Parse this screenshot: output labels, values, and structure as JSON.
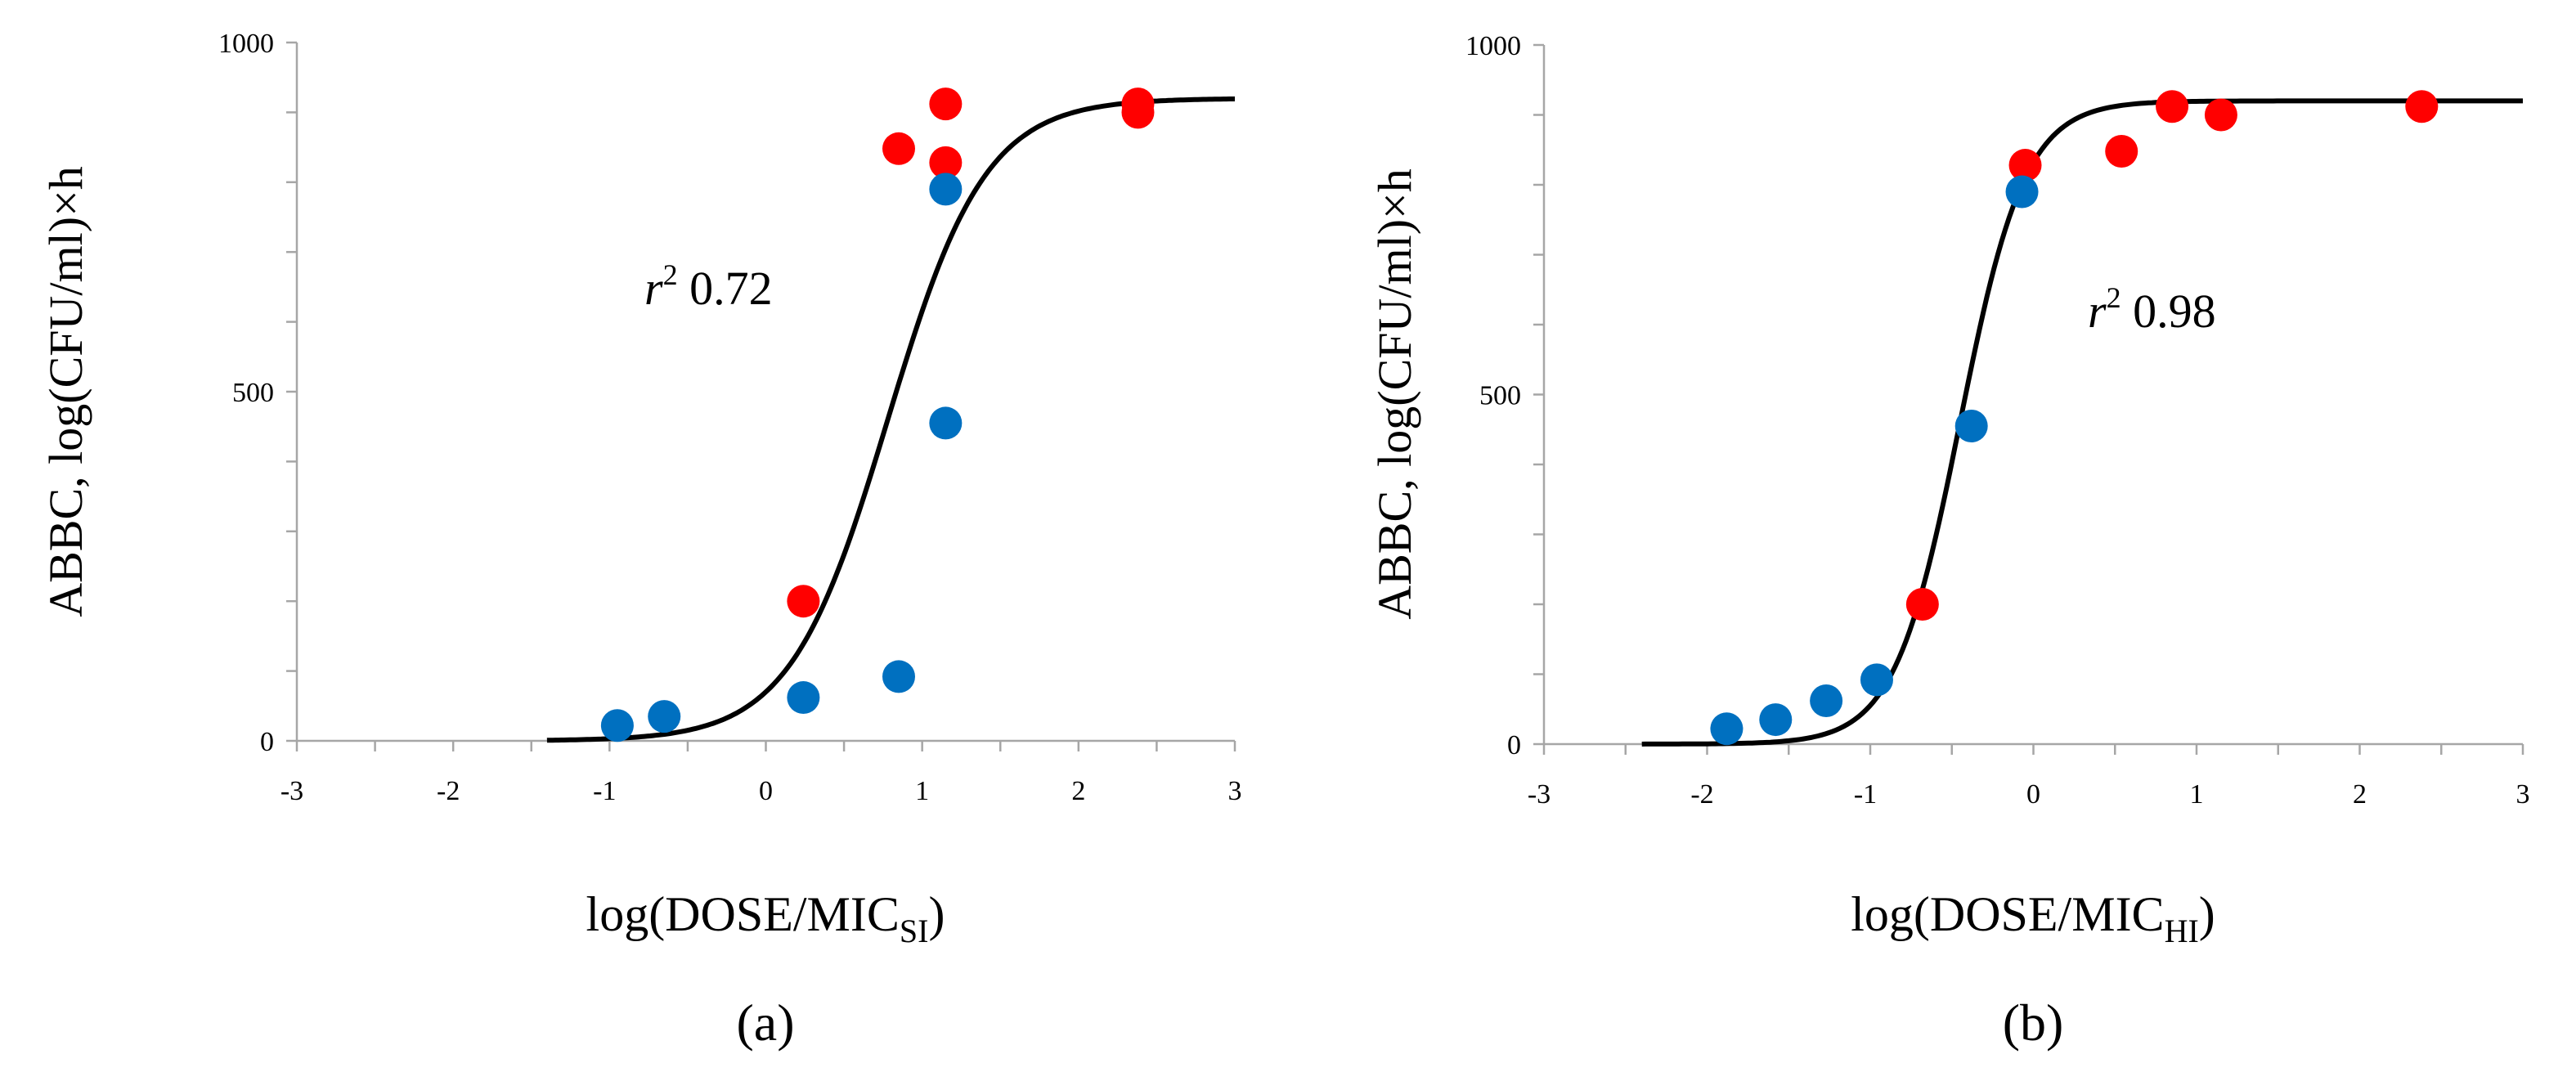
{
  "chart_data": [
    {
      "type": "scatter",
      "panel_label": "(a)",
      "xlabel_main": "log(DOSE/MIC",
      "xlabel_sub": "SI",
      "xlabel_close": ")",
      "ylabel": "ABBC, log(CFU/ml)×h",
      "xlim": [
        -3,
        3
      ],
      "ylim": [
        0,
        1000
      ],
      "x_ticks": [
        "-3",
        "-2",
        "-1",
        "0",
        "1",
        "2",
        "3"
      ],
      "y_ticks": [
        "0",
        "500",
        "1000"
      ],
      "annotation": {
        "symbol": "r",
        "sup": "2",
        "value": " 0.72"
      },
      "colors": {
        "series_red": "#ff0000",
        "series_blue": "#0070c0",
        "curve": "#000000",
        "axis": "#a6a6a6"
      },
      "series": [
        {
          "name": "red",
          "color": "#ff0000",
          "x": [
            0.24,
            0.85,
            1.15,
            1.15,
            2.38,
            2.38
          ],
          "y": [
            200,
            848,
            912,
            828,
            900,
            912
          ]
        },
        {
          "name": "blue",
          "color": "#0070c0",
          "x": [
            -0.95,
            -0.65,
            0.24,
            0.85,
            1.15,
            1.15
          ],
          "y": [
            22,
            35,
            62,
            92,
            455,
            790
          ]
        }
      ],
      "fit_curve": {
        "x0": 0.78,
        "slope": 3.2,
        "top": 920,
        "x_start": -1.4,
        "x_end": 3.0
      }
    },
    {
      "type": "scatter",
      "panel_label": "(b)",
      "xlabel_main": "log(DOSE/MIC",
      "xlabel_sub": "HI",
      "xlabel_close": ")",
      "ylabel": "ABBC, log(CFU/ml)×h",
      "xlim": [
        -3,
        3
      ],
      "ylim": [
        0,
        1000
      ],
      "x_ticks": [
        "-3",
        "-2",
        "-1",
        "0",
        "1",
        "2",
        "3"
      ],
      "y_ticks": [
        "0",
        "500",
        "1000"
      ],
      "annotation": {
        "symbol": "r",
        "sup": "2",
        "value": " 0.98"
      },
      "colors": {
        "series_red": "#ff0000",
        "series_blue": "#0070c0",
        "curve": "#000000",
        "axis": "#a6a6a6"
      },
      "series": [
        {
          "name": "red",
          "color": "#ff0000",
          "x": [
            -0.68,
            -0.05,
            0.54,
            0.85,
            1.15,
            2.38
          ],
          "y": [
            200,
            828,
            848,
            912,
            900,
            912
          ]
        },
        {
          "name": "blue",
          "color": "#0070c0",
          "x": [
            -1.88,
            -1.58,
            -1.27,
            -0.96,
            -0.38,
            -0.07
          ],
          "y": [
            22,
            35,
            62,
            92,
            455,
            790
          ]
        }
      ],
      "fit_curve": {
        "x0": -0.45,
        "slope": 5.0,
        "top": 920,
        "x_start": -2.4,
        "x_end": 3.0
      }
    }
  ]
}
